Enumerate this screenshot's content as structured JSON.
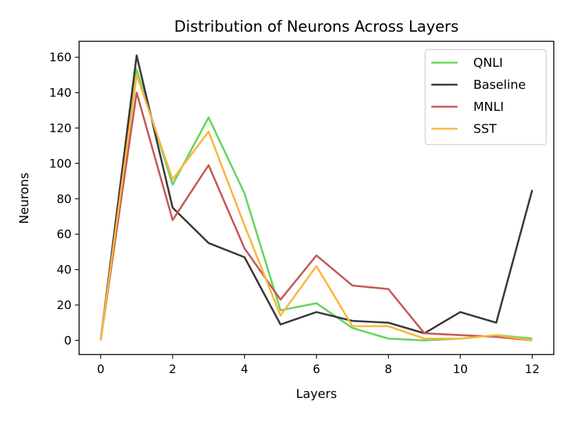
{
  "chart_data": {
    "type": "line",
    "title": "Distribution of Neurons Across Layers",
    "xlabel": "Layers",
    "ylabel": "Neurons",
    "x": [
      0,
      1,
      2,
      3,
      4,
      5,
      6,
      7,
      8,
      9,
      10,
      11,
      12
    ],
    "xlim": [
      -0.6,
      12.6
    ],
    "ylim": [
      -8,
      169
    ],
    "xticks": [
      0,
      2,
      4,
      6,
      8,
      10,
      12
    ],
    "yticks": [
      0,
      20,
      40,
      60,
      80,
      100,
      120,
      140,
      160
    ],
    "grid": false,
    "legend_position": "top-right",
    "series": [
      {
        "name": "QNLI",
        "color": "#66d55f",
        "values": [
          0,
          153,
          88,
          126,
          83,
          17,
          21,
          7,
          1,
          0,
          1,
          3,
          1
        ]
      },
      {
        "name": "Baseline",
        "color": "#3a3a3a",
        "values": [
          0,
          161,
          75,
          55,
          47,
          9,
          16,
          11,
          10,
          4,
          16,
          10,
          85
        ]
      },
      {
        "name": "MNLI",
        "color": "#c45a57",
        "values": [
          0,
          140,
          68,
          99,
          52,
          23,
          48,
          31,
          29,
          4,
          3,
          2,
          0
        ]
      },
      {
        "name": "SST",
        "color": "#fbb640",
        "values": [
          0,
          150,
          91,
          118,
          65,
          14,
          42,
          8,
          8,
          1,
          1,
          3,
          0
        ]
      }
    ]
  }
}
